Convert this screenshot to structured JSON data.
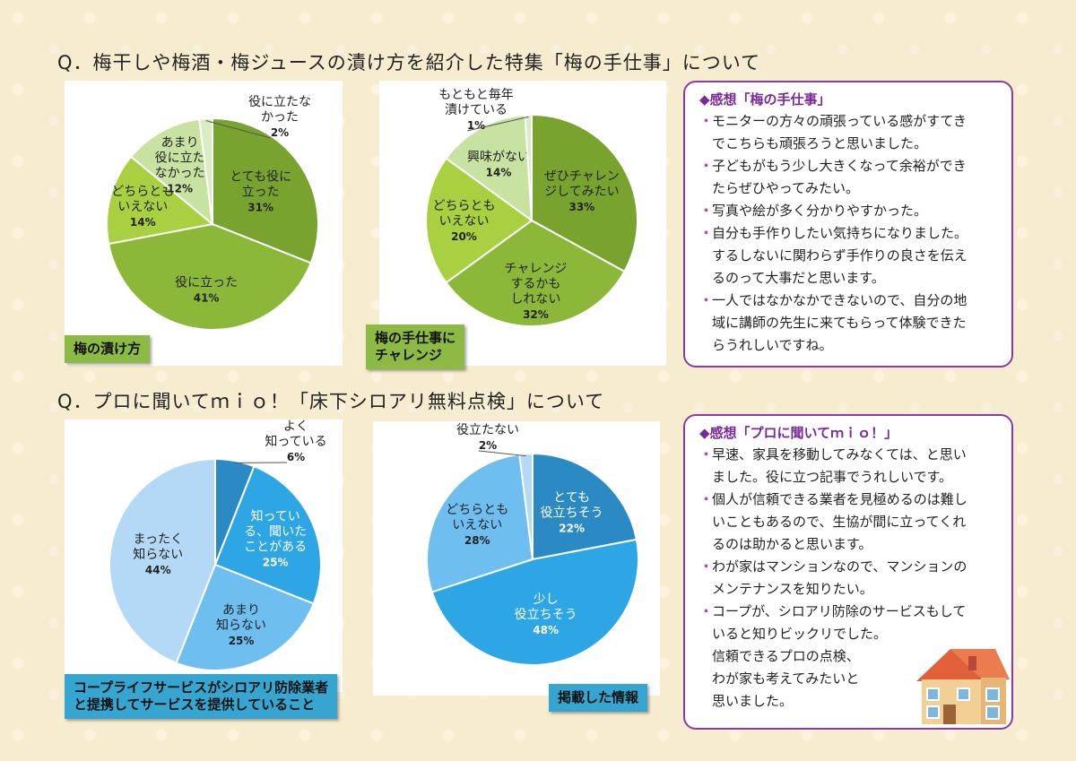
{
  "section1": {
    "title": "Q．梅干しや梅酒・梅ジュースの漬け方を紹介した特集「梅の手仕事」について"
  },
  "section2": {
    "title": "Q．プロに聞いてｍｉｏ！「床下シロアリ無料点検」について"
  },
  "chart_data": [
    {
      "type": "pie",
      "title": "梅の漬け方",
      "categories": [
        "とても役に立った",
        "役に立った",
        "どちらともいえない",
        "あまり役に立たなかった",
        "役に立たなかった"
      ],
      "values": [
        31,
        41,
        14,
        12,
        2
      ],
      "labels": [
        [
          "とても役に",
          "立った",
          "31%"
        ],
        [
          "役に立った",
          "41%"
        ],
        [
          "どちらとも",
          "いえない",
          "14%"
        ],
        [
          "あまり",
          "役に立た",
          "なかった",
          "12%"
        ],
        [
          "役に立たな",
          "かった",
          "2%"
        ]
      ],
      "colors": [
        "#78a32e",
        "#8bb838",
        "#a9d040",
        "#c8e2a2",
        "#d9ecc2"
      ]
    },
    {
      "type": "pie",
      "title": "梅の手仕事にチャレンジ",
      "categories": [
        "ぜひチャレンジしてみたい",
        "チャレンジするかもしれない",
        "どちらともいえない",
        "興味がない",
        "もともと毎年漬けている"
      ],
      "values": [
        33,
        32,
        20,
        14,
        1
      ],
      "labels": [
        [
          "ぜひチャレン",
          "ジしてみたい",
          "33%"
        ],
        [
          "チャレンジ",
          "するかも",
          "しれない",
          "32%"
        ],
        [
          "どちらとも",
          "いえない",
          "20%"
        ],
        [
          "興味がない",
          "14%"
        ],
        [
          "もともと毎年",
          "漬けている",
          "1%"
        ]
      ],
      "colors": [
        "#78a32e",
        "#8bb838",
        "#a9d040",
        "#c8e2a2",
        "#d9ecc2"
      ]
    },
    {
      "type": "pie",
      "title": "コープライフサービスがシロアリ防除業者と提携してサービスを提供していること",
      "categories": [
        "よく知っている",
        "知っている、聞いたことがある",
        "あまり知らない",
        "まったく知らない"
      ],
      "values": [
        6,
        25,
        25,
        44
      ],
      "labels": [
        [
          "よく",
          "知っている",
          "6%"
        ],
        [
          "知ってい",
          "る、聞いた",
          "ことがある",
          "25%"
        ],
        [
          "あまり",
          "知らない",
          "25%"
        ],
        [
          "まったく",
          "知らない",
          "44%"
        ]
      ],
      "colors": [
        "#2b8ac4",
        "#2ea5e4",
        "#6fbef0",
        "#b3d9f6"
      ]
    },
    {
      "type": "pie",
      "title": "掲載した情報",
      "categories": [
        "とても役立ちそう",
        "少し役立ちそう",
        "どちらともいえない",
        "役立たない"
      ],
      "values": [
        22,
        48,
        28,
        2
      ],
      "labels": [
        [
          "とても",
          "役立ちそう",
          "22%"
        ],
        [
          "少し",
          "役立ちそう",
          "48%"
        ],
        [
          "どちらとも",
          "いえない",
          "28%"
        ],
        [
          "役立たない",
          "2%"
        ]
      ],
      "colors": [
        "#2b8ac4",
        "#2ea5e4",
        "#6fbef0",
        "#b3d9f6"
      ]
    }
  ],
  "tags": {
    "t1": "梅の漬け方",
    "t2a": "梅の手仕事に",
    "t2b": "チャレンジ",
    "t3a": "コープライフサービスがシロアリ防除業者",
    "t3b": "と提携してサービスを提供していること",
    "t4": "掲載した情報"
  },
  "comments1": {
    "heading": "◆感想「梅の手仕事」",
    "bullet": "・",
    "items": [
      [
        "モニターの方々の頑張っている感がすてき",
        "でこちらも頑張ろうと思いました。"
      ],
      [
        "子どもがもう少し大きくなって余裕ができ",
        "たらぜひやってみたい。"
      ],
      [
        "写真や絵が多く分かりやすかった。"
      ],
      [
        "自分も手作りしたい気持ちになりました。",
        "するしないに関わらず手作りの良さを伝え",
        "るのって大事だと思います。"
      ],
      [
        "一人ではなかなかできないので、自分の地",
        "域に講師の先生に来てもらって体験できた",
        "らうれしいですね。"
      ]
    ]
  },
  "comments2": {
    "heading": "◆感想「プロに聞いてｍｉｏ！」",
    "bullet": "・",
    "items": [
      [
        "早速、家具を移動してみなくては、と思い",
        "ました。役に立つ記事でうれしいです。"
      ],
      [
        "個人が信頼できる業者を見極めるのは難し",
        "いこともあるので、生協が間に立ってくれ",
        "るのは助かると思います。"
      ],
      [
        "わが家はマンションなので、マンションの",
        "メンテナンスを知りたい。"
      ],
      [
        "コープが、シロアリ防除のサービスもして",
        "いると知りビックリでした。",
        "信頼できるプロの点検、",
        "わが家も考えてみたいと",
        "思いました。"
      ]
    ]
  }
}
